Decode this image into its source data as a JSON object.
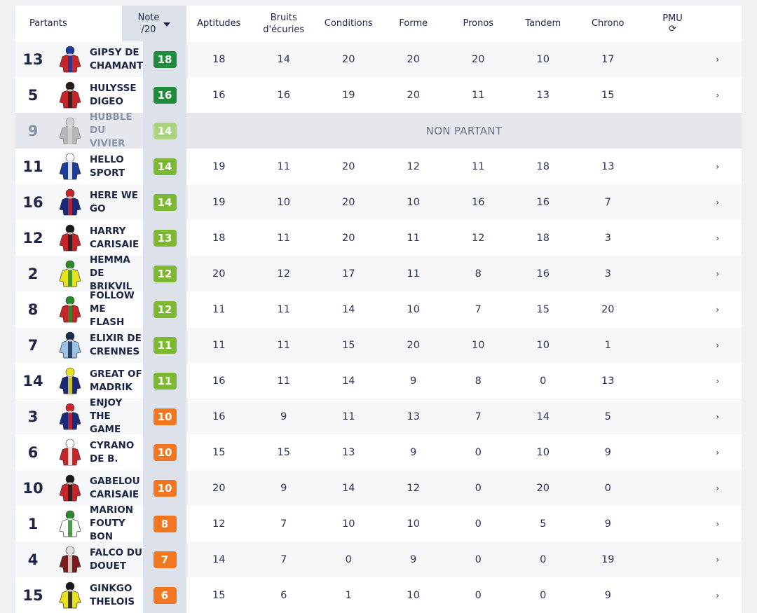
{
  "header": {
    "partants": "Partants",
    "note_line1": "Note",
    "note_line2": "/20",
    "columns": [
      "Aptitudes",
      "Bruits d'écuries",
      "Conditions",
      "Forme",
      "Pronos",
      "Tandem",
      "Chrono"
    ],
    "pmu": "PMU",
    "pmu_icon": "refresh-icon"
  },
  "non_partant_label": "NON PARTANT",
  "chevron_glyph": "›",
  "badge_colors": {
    "dark_green": "#1f8b3c",
    "green": "#7cb832",
    "light_green": "#a9d47c",
    "orange": "#f2761f"
  },
  "rows": [
    {
      "num": "13",
      "name": "GIPSY DE CHAMANT",
      "note": "18",
      "color": "#1f8b3c",
      "silk": [
        "#c8252a",
        "#1d3b9a"
      ],
      "vals": [
        "18",
        "14",
        "20",
        "20",
        "20",
        "10",
        "17"
      ]
    },
    {
      "num": "5",
      "name": "HULYSSE DIGEO",
      "note": "16",
      "color": "#1f8b3c",
      "silk": [
        "#c8252a",
        "#2a1a1a"
      ],
      "vals": [
        "16",
        "16",
        "19",
        "20",
        "11",
        "13",
        "15"
      ]
    },
    {
      "num": "9",
      "name": "HUBBLE DU VIVIER",
      "note": "14",
      "color": "#a9d47c",
      "silk": [
        "#8f8f8f",
        "#bdbdbd"
      ],
      "np": true,
      "vals": []
    },
    {
      "num": "11",
      "name": "HELLO SPORT",
      "note": "14",
      "color": "#7cb832",
      "silk": [
        "#1d3b9a",
        "#ffffff"
      ],
      "vals": [
        "19",
        "11",
        "20",
        "12",
        "11",
        "18",
        "13"
      ]
    },
    {
      "num": "16",
      "name": "HERE WE GO",
      "note": "14",
      "color": "#7cb832",
      "silk": [
        "#1a2a7a",
        "#c8252a"
      ],
      "vals": [
        "19",
        "10",
        "20",
        "10",
        "16",
        "16",
        "7"
      ]
    },
    {
      "num": "12",
      "name": "HARRY CARISAIE",
      "note": "13",
      "color": "#7cb832",
      "silk": [
        "#c8252a",
        "#1a1a1a"
      ],
      "vals": [
        "18",
        "11",
        "20",
        "11",
        "12",
        "18",
        "3"
      ]
    },
    {
      "num": "2",
      "name": "HEMMA DE BRIKVIL",
      "note": "12",
      "color": "#7cb832",
      "silk": [
        "#e9e11a",
        "#2a8a2a"
      ],
      "vals": [
        "20",
        "12",
        "17",
        "11",
        "8",
        "16",
        "3"
      ]
    },
    {
      "num": "8",
      "name": "FOLLOW ME FLASH",
      "note": "12",
      "color": "#7cb832",
      "silk": [
        "#c8252a",
        "#2a8a2a"
      ],
      "vals": [
        "11",
        "11",
        "14",
        "10",
        "7",
        "15",
        "20"
      ]
    },
    {
      "num": "7",
      "name": "ELIXIR DE CRENNES",
      "note": "11",
      "color": "#7cb832",
      "silk": [
        "#9bc3e8",
        "#1a2a4a"
      ],
      "vals": [
        "11",
        "11",
        "15",
        "20",
        "10",
        "10",
        "1"
      ]
    },
    {
      "num": "14",
      "name": "GREAT OF MADRIK",
      "note": "11",
      "color": "#7cb832",
      "silk": [
        "#1a2a7a",
        "#e9e11a"
      ],
      "vals": [
        "16",
        "11",
        "14",
        "9",
        "8",
        "0",
        "13"
      ]
    },
    {
      "num": "3",
      "name": "ENJOY THE GAME",
      "note": "10",
      "color": "#f2761f",
      "silk": [
        "#1a2a7a",
        "#c8252a"
      ],
      "vals": [
        "16",
        "9",
        "11",
        "13",
        "7",
        "14",
        "5"
      ]
    },
    {
      "num": "6",
      "name": "CYRANO DE B.",
      "note": "10",
      "color": "#f2761f",
      "silk": [
        "#c8252a",
        "#ffffff"
      ],
      "vals": [
        "15",
        "15",
        "13",
        "9",
        "0",
        "10",
        "9"
      ]
    },
    {
      "num": "10",
      "name": "GABELOU CARISAIE",
      "note": "10",
      "color": "#f2761f",
      "silk": [
        "#c8252a",
        "#1a1a1a"
      ],
      "vals": [
        "20",
        "9",
        "14",
        "12",
        "0",
        "20",
        "0"
      ]
    },
    {
      "num": "1",
      "name": "MARION FOUTY BON",
      "note": "8",
      "color": "#f2761f",
      "silk": [
        "#ffffff",
        "#2a8a2a"
      ],
      "vals": [
        "12",
        "7",
        "10",
        "10",
        "0",
        "5",
        "9"
      ]
    },
    {
      "num": "4",
      "name": "FALCO DU DOUET",
      "note": "7",
      "color": "#f2761f",
      "silk": [
        "#7a1a1a",
        "#e0e0e0"
      ],
      "vals": [
        "14",
        "7",
        "0",
        "9",
        "0",
        "0",
        "19"
      ]
    },
    {
      "num": "15",
      "name": "GINKGO THELOIS",
      "note": "6",
      "color": "#f2761f",
      "silk": [
        "#e9e11a",
        "#1a1a1a"
      ],
      "vals": [
        "15",
        "6",
        "1",
        "10",
        "0",
        "0",
        "9"
      ]
    }
  ]
}
